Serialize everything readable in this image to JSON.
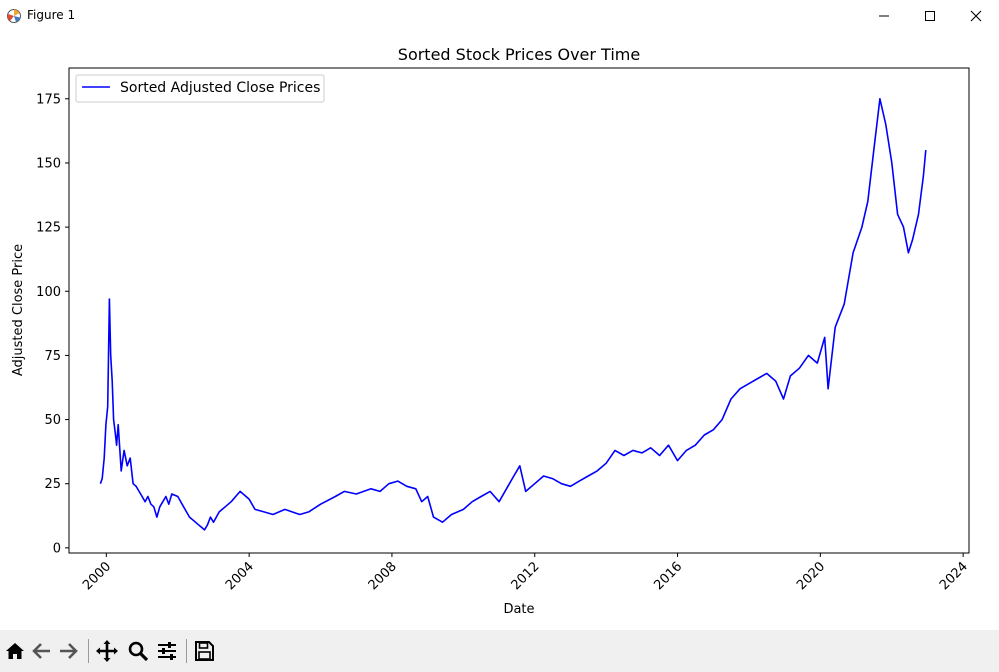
{
  "window": {
    "title": "Figure 1"
  },
  "toolbar": {
    "icons": [
      "home-icon",
      "back-icon",
      "forward-icon",
      "pan-icon",
      "zoom-icon",
      "configure-subplots-icon",
      "save-icon"
    ]
  },
  "colors": {
    "line": "#0000ff",
    "toolbar_bg": "#f0f0f0"
  },
  "chart_data": {
    "type": "line",
    "title": "Sorted Stock Prices Over Time",
    "xlabel": "Date",
    "ylabel": "Adjusted Close Price",
    "xlim": [
      "1998-12-15",
      "2024-03-01"
    ],
    "ylim": [
      -2,
      187
    ],
    "x_ticks": [
      "2000-01-01",
      "2004-01-01",
      "2008-01-01",
      "2012-01-01",
      "2016-01-01",
      "2020-01-01",
      "2024-01-01"
    ],
    "x_tick_labels": [
      "2000",
      "2004",
      "2008",
      "2012",
      "2016",
      "2020",
      "2024"
    ],
    "y_ticks": [
      0,
      25,
      50,
      75,
      100,
      125,
      150,
      175
    ],
    "y_tick_labels": [
      "0",
      "25",
      "50",
      "75",
      "100",
      "125",
      "150",
      "175"
    ],
    "legend_position": "top-left",
    "grid": false,
    "series": [
      {
        "name": "Sorted Adjusted Close Prices",
        "color": "#0000ff",
        "x": [
          "1999-11-01",
          "1999-11-20",
          "1999-12-10",
          "1999-12-28",
          "2000-01-15",
          "2000-02-01",
          "2000-02-15",
          "2000-03-01",
          "2000-03-15",
          "2000-04-01",
          "2000-04-15",
          "2000-05-01",
          "2000-06-01",
          "2000-07-01",
          "2000-08-01",
          "2000-09-01",
          "2000-10-01",
          "2000-11-01",
          "2000-12-01",
          "2001-01-01",
          "2001-02-01",
          "2001-03-01",
          "2001-04-01",
          "2001-05-01",
          "2001-06-01",
          "2001-07-01",
          "2001-08-01",
          "2001-09-01",
          "2001-10-01",
          "2001-11-01",
          "2002-01-01",
          "2002-03-01",
          "2002-05-01",
          "2002-07-01",
          "2002-08-01",
          "2002-09-01",
          "2002-10-01",
          "2002-11-01",
          "2002-12-01",
          "2003-01-01",
          "2003-03-01",
          "2003-05-01",
          "2003-07-01",
          "2003-10-01",
          "2004-01-01",
          "2004-03-01",
          "2004-06-01",
          "2004-09-01",
          "2005-01-01",
          "2005-06-01",
          "2005-09-01",
          "2006-01-01",
          "2006-06-01",
          "2006-09-01",
          "2007-01-01",
          "2007-06-01",
          "2007-09-01",
          "2007-12-01",
          "2008-03-01",
          "2008-06-01",
          "2008-09-01",
          "2008-11-01",
          "2009-01-01",
          "2009-03-01",
          "2009-06-01",
          "2009-09-01",
          "2010-01-01",
          "2010-04-01",
          "2010-07-01",
          "2010-10-01",
          "2011-01-01",
          "2011-04-01",
          "2011-06-01",
          "2011-08-01",
          "2011-10-01",
          "2012-01-01",
          "2012-04-01",
          "2012-07-01",
          "2012-10-01",
          "2013-01-01",
          "2013-04-01",
          "2013-07-01",
          "2013-10-01",
          "2014-01-01",
          "2014-04-01",
          "2014-07-01",
          "2014-10-01",
          "2015-01-01",
          "2015-04-01",
          "2015-07-01",
          "2015-10-01",
          "2016-01-01",
          "2016-04-01",
          "2016-07-01",
          "2016-10-01",
          "2017-01-01",
          "2017-04-01",
          "2017-07-01",
          "2017-10-01",
          "2018-01-01",
          "2018-04-01",
          "2018-07-01",
          "2018-10-01",
          "2018-12-20",
          "2019-03-01",
          "2019-06-01",
          "2019-09-01",
          "2019-12-01",
          "2020-02-15",
          "2020-03-20",
          "2020-06-01",
          "2020-09-01",
          "2020-12-01",
          "2021-03-01",
          "2021-05-01",
          "2021-07-01",
          "2021-09-01",
          "2021-11-01",
          "2022-01-01",
          "2022-03-01",
          "2022-05-01",
          "2022-06-20",
          "2022-08-01",
          "2022-10-01",
          "2022-11-20",
          "2022-12-15"
        ],
        "values": [
          25,
          27,
          35,
          48,
          55,
          97,
          75,
          65,
          50,
          45,
          40,
          48,
          30,
          38,
          32,
          35,
          25,
          24,
          22,
          20,
          18,
          20,
          17,
          16,
          12,
          16,
          18,
          20,
          17,
          21,
          20,
          16,
          12,
          10,
          9,
          8,
          7,
          9,
          12,
          10,
          14,
          16,
          18,
          22,
          19,
          15,
          14,
          13,
          15,
          13,
          14,
          17,
          20,
          22,
          21,
          23,
          22,
          25,
          26,
          24,
          23,
          18,
          20,
          12,
          10,
          13,
          15,
          18,
          20,
          22,
          18,
          24,
          28,
          32,
          22,
          25,
          28,
          27,
          25,
          24,
          26,
          28,
          30,
          33,
          38,
          36,
          38,
          37,
          39,
          36,
          40,
          34,
          38,
          40,
          44,
          46,
          50,
          58,
          62,
          64,
          66,
          68,
          65,
          58,
          67,
          70,
          75,
          72,
          82,
          62,
          86,
          95,
          115,
          125,
          135,
          155,
          175,
          165,
          150,
          130,
          125,
          115,
          120,
          130,
          145,
          155
        ]
      }
    ]
  }
}
